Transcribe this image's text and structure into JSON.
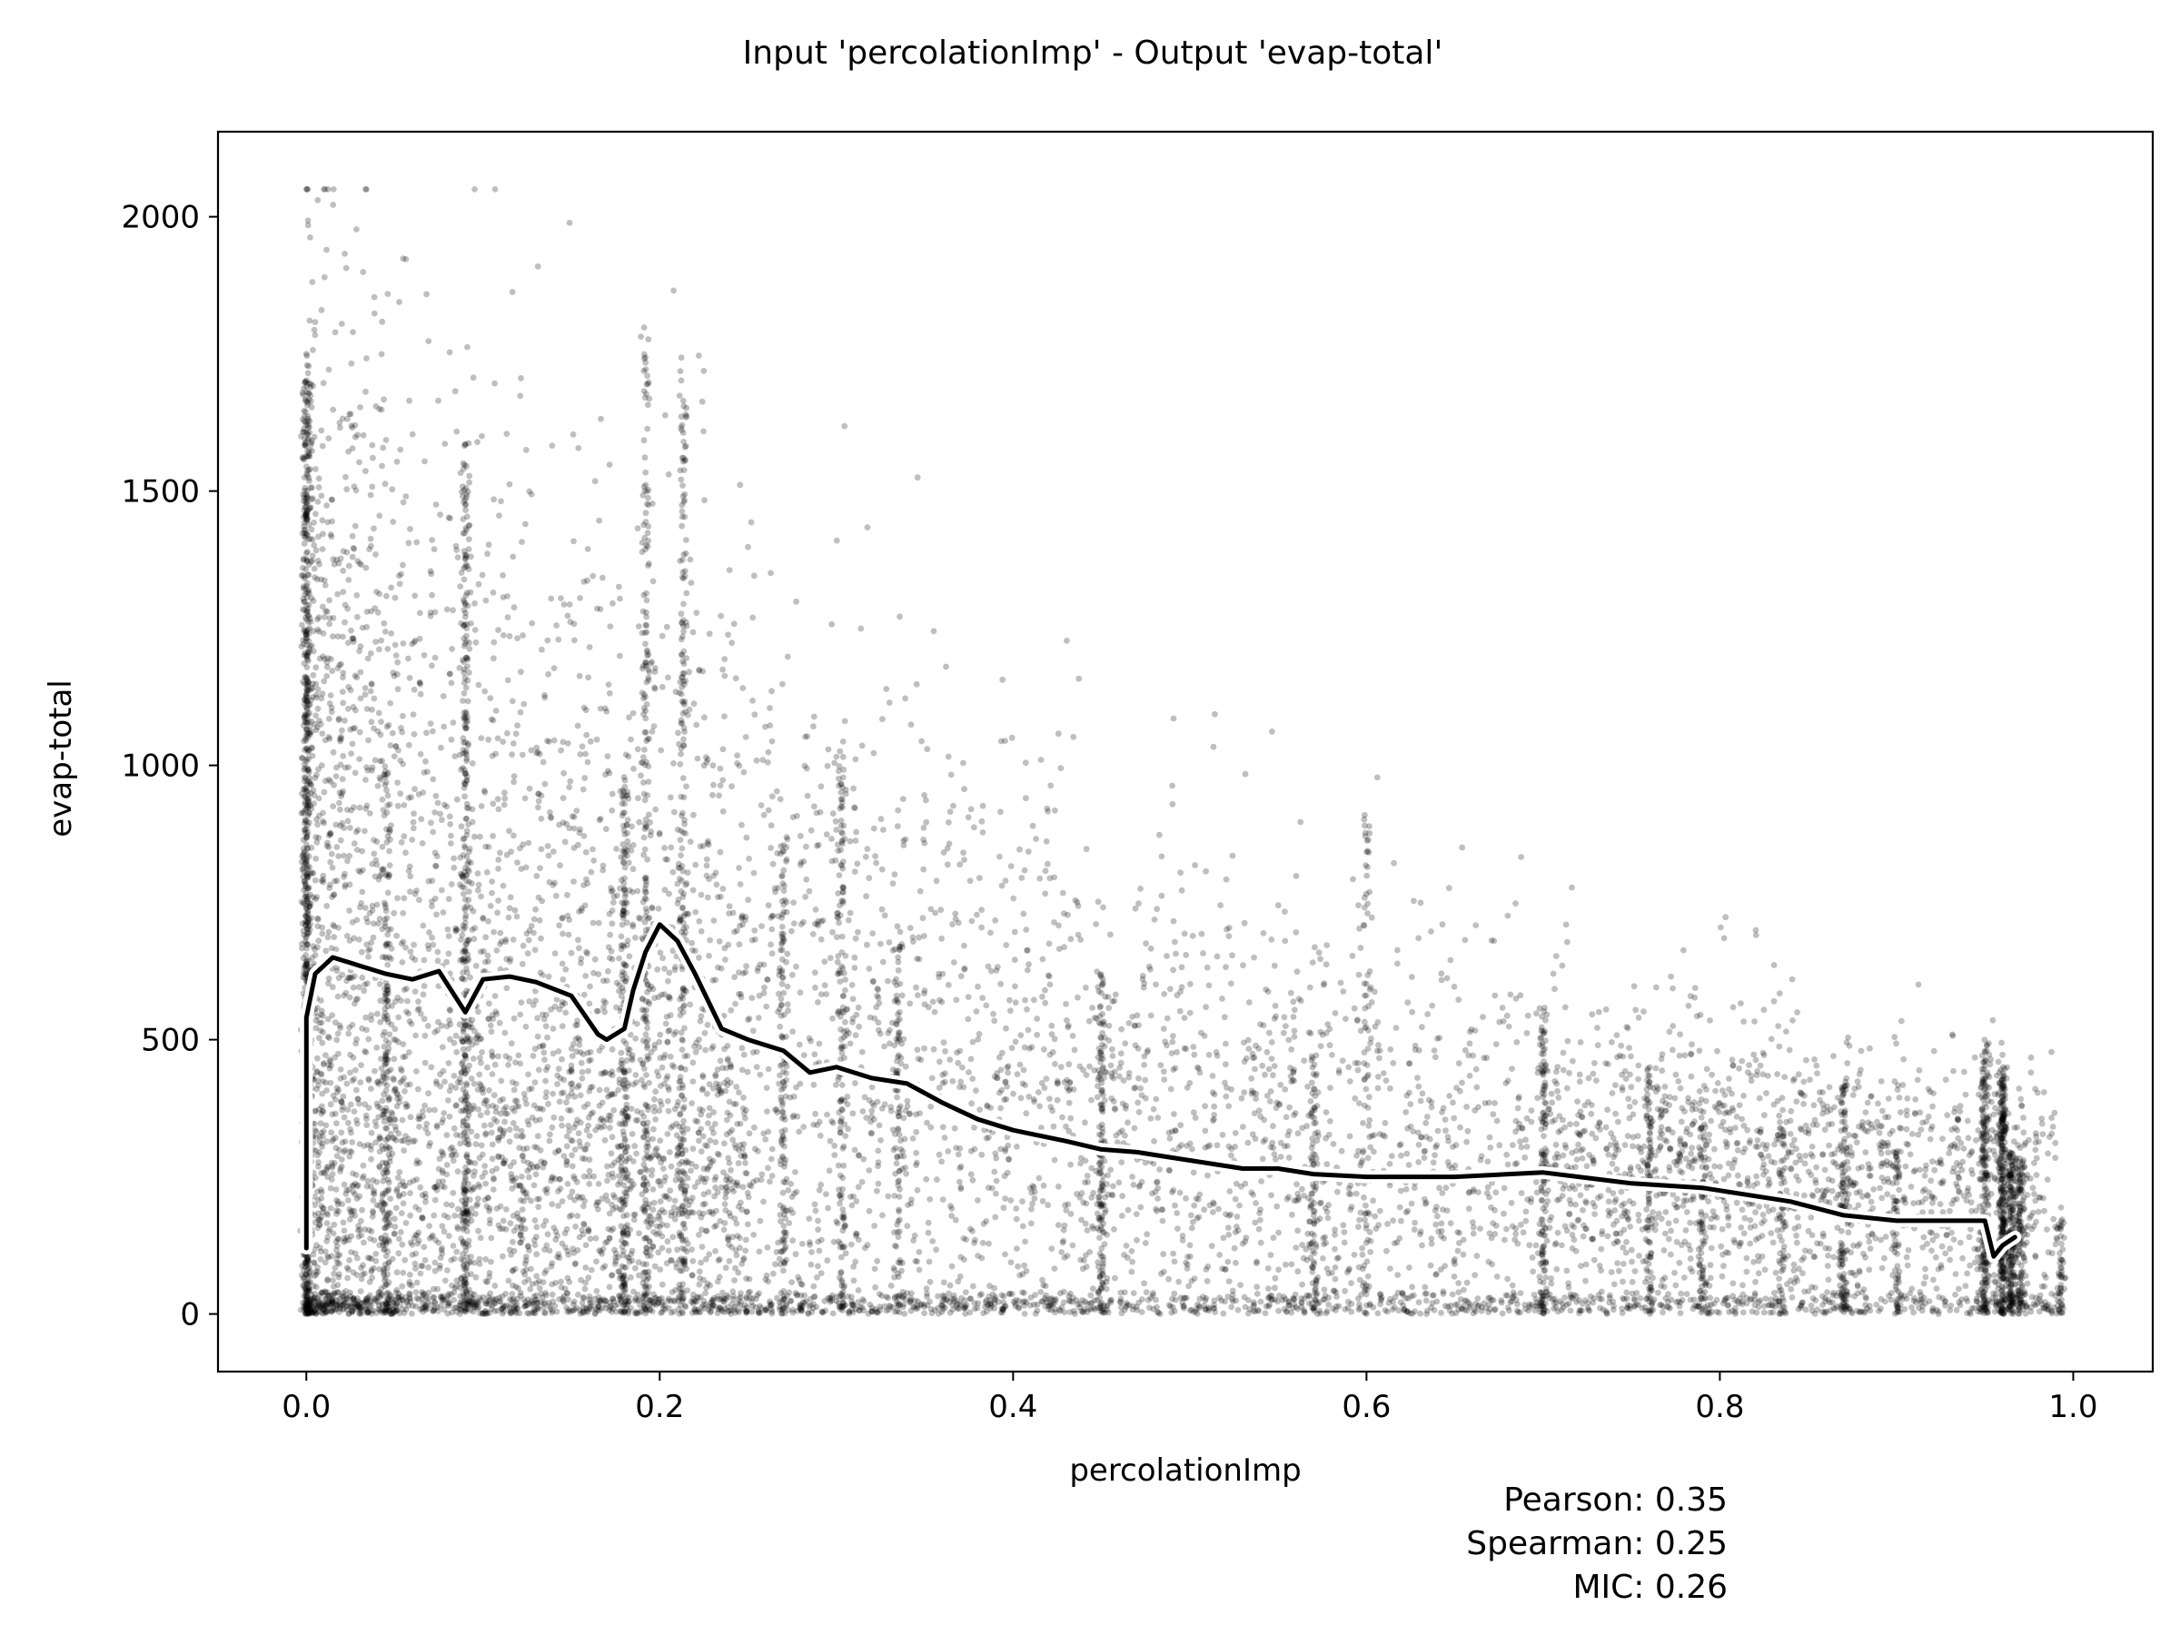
{
  "chart_data": {
    "type": "scatter",
    "title": "Input 'percolationImp' - Output 'evap-total'",
    "xlabel": "percolationImp",
    "ylabel": "evap-total",
    "xlim": [
      -0.05,
      1.045
    ],
    "ylim": [
      -105,
      2155
    ],
    "xticks": [
      0.0,
      0.2,
      0.4,
      0.6,
      0.8,
      1.0
    ],
    "xtick_labels": [
      "0.0",
      "0.2",
      "0.4",
      "0.6",
      "0.8",
      "1.0"
    ],
    "yticks": [
      0,
      500,
      1000,
      1500,
      2000
    ],
    "ytick_labels": [
      "0",
      "500",
      "1000",
      "1500",
      "2000"
    ],
    "grid": false,
    "point_color": "#000000",
    "point_opacity": 0.25,
    "trend_color": "#000000",
    "trend_outline_color": "#ffffff",
    "trend_line": {
      "x": [
        0.0,
        0.0,
        0.005,
        0.015,
        0.03,
        0.045,
        0.06,
        0.075,
        0.085,
        0.09,
        0.1,
        0.115,
        0.13,
        0.15,
        0.165,
        0.17,
        0.18,
        0.185,
        0.192,
        0.2,
        0.21,
        0.22,
        0.235,
        0.25,
        0.27,
        0.285,
        0.3,
        0.32,
        0.34,
        0.36,
        0.38,
        0.4,
        0.43,
        0.45,
        0.47,
        0.5,
        0.53,
        0.55,
        0.57,
        0.6,
        0.65,
        0.7,
        0.75,
        0.79,
        0.8,
        0.84,
        0.87,
        0.9,
        0.95,
        0.955,
        0.96,
        0.967
      ],
      "y": [
        120,
        540,
        620,
        650,
        635,
        620,
        610,
        625,
        575,
        550,
        610,
        615,
        605,
        580,
        510,
        500,
        520,
        590,
        660,
        710,
        680,
        620,
        520,
        500,
        480,
        440,
        450,
        430,
        420,
        385,
        355,
        335,
        315,
        300,
        295,
        280,
        265,
        265,
        255,
        250,
        250,
        258,
        238,
        230,
        225,
        205,
        180,
        170,
        170,
        105,
        125,
        140
      ]
    },
    "annotations": [
      "Pearson: 0.35",
      "Spearman: 0.25",
      "MIC: 0.26"
    ]
  }
}
